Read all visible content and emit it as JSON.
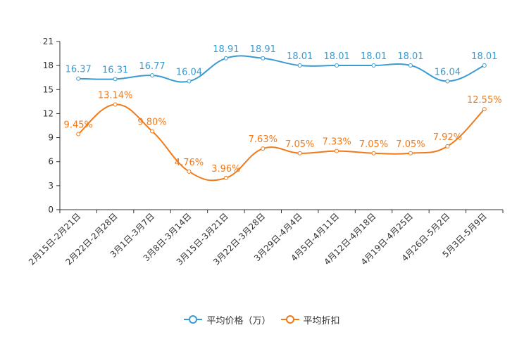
{
  "chart_data": {
    "type": "line",
    "title": "",
    "xlabel": "",
    "ylabel": "",
    "ylim": [
      0,
      21
    ],
    "yticks": [
      0,
      3,
      6,
      9,
      12,
      15,
      18,
      21
    ],
    "categories": [
      "2月15日-2月21日",
      "2月22日-2月28日",
      "3月1日-3月7日",
      "3月8日-3月14日",
      "3月15日-3月21日",
      "3月22日-3月28日",
      "3月29日-4月4日",
      "4月5日-4月11日",
      "4月12日-4月18日",
      "4月19日-4月25日",
      "4月26日-5月2日",
      "5月3日-5月9日"
    ],
    "series": [
      {
        "name": "平均价格（万）",
        "color": "#3a9bd0",
        "values": [
          16.37,
          16.31,
          16.77,
          16.04,
          18.91,
          18.91,
          18.01,
          18.01,
          18.01,
          18.01,
          16.04,
          18.01
        ],
        "labels": [
          "16.37",
          "16.31",
          "16.77",
          "16.04",
          "18.91",
          "18.91",
          "18.01",
          "18.01",
          "18.01",
          "18.01",
          "16.04",
          "18.01"
        ]
      },
      {
        "name": "平均折扣",
        "color": "#f07a1a",
        "values": [
          9.45,
          13.14,
          9.8,
          4.76,
          3.96,
          7.63,
          7.05,
          7.33,
          7.05,
          7.05,
          7.92,
          12.55
        ],
        "labels": [
          "9.45%",
          "13.14%",
          "9.80%",
          "4.76%",
          "3.96%",
          "7.63%",
          "7.05%",
          "7.33%",
          "7.05%",
          "7.05%",
          "7.92%",
          "12.55%"
        ]
      }
    ],
    "legend": "bottom-center",
    "grid": false
  }
}
